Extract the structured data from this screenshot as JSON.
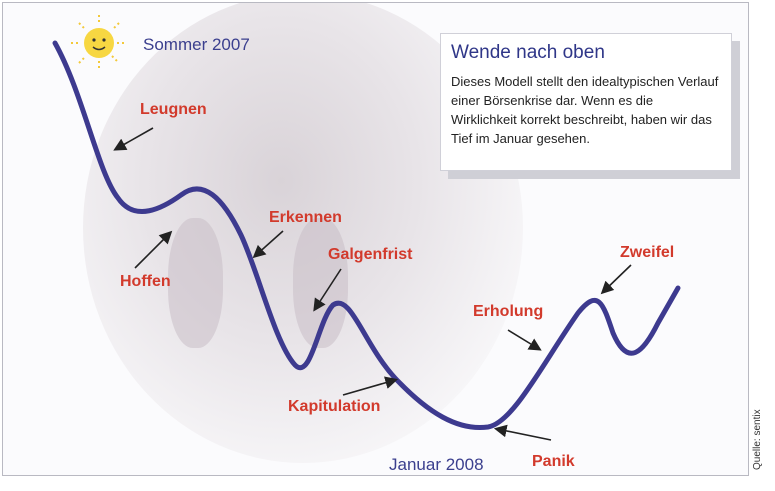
{
  "labels": {
    "season": "Sommer 2007",
    "date": "Januar 2008",
    "source": "Quelle: sentix"
  },
  "infobox": {
    "title": "Wende nach oben",
    "text": "Dieses Modell stellt den idealtypischen Verlauf einer Börsenkrise dar. Wenn es die Wirklichkeit korrekt beschreibt, haben wir das Tief im Januar gesehen."
  },
  "phases": [
    {
      "id": "leugnen",
      "label": "Leugnen"
    },
    {
      "id": "hoffen",
      "label": "Hoffen"
    },
    {
      "id": "erkennen",
      "label": "Erkennen"
    },
    {
      "id": "galgenfrist",
      "label": "Galgenfrist"
    },
    {
      "id": "kapitulation",
      "label": "Kapitulation"
    },
    {
      "id": "panik",
      "label": "Panik"
    },
    {
      "id": "erholung",
      "label": "Erholung"
    },
    {
      "id": "zweifel",
      "label": "Zweifel"
    }
  ],
  "icons": {
    "sun": "sun-icon",
    "arrow": "arrow-icon"
  },
  "colors": {
    "curve": "#3d3a8f",
    "phase_text": "#d23a2c",
    "title_text": "#2f3688",
    "sun": "#f7d742"
  }
}
